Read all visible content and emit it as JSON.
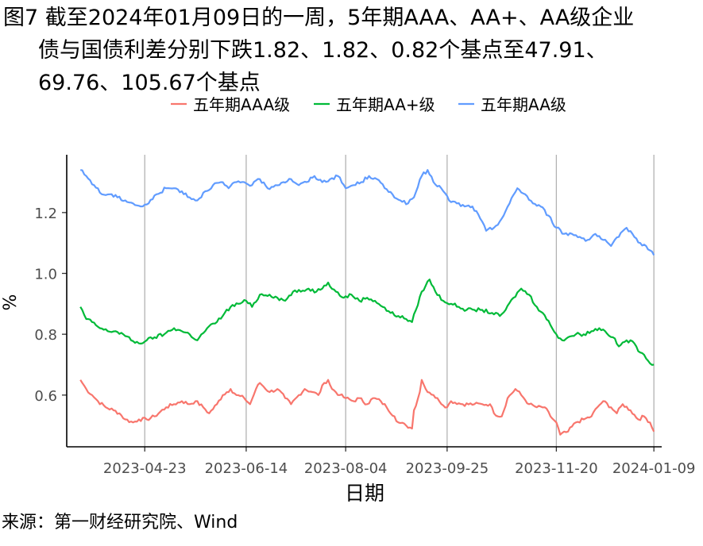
{
  "title_lines": [
    "图7  截至2024年01月09日的一周，5年期AAA、AA+、AA级企业",
    "债与国债利差分别下跌1.82、1.82、0.82个基点至47.91、",
    "69.76、105.67个基点"
  ],
  "source": "来源：第一财经研究院、Wind",
  "chart_data": {
    "type": "line",
    "xlabel": "日期",
    "ylabel": "%",
    "x_start": "2023-03-21",
    "x_end": "2024-01-09",
    "xlim": [
      "2023-03-14",
      "2024-01-13"
    ],
    "ylim": [
      0.43,
      1.39
    ],
    "x_ticks": [
      "2023-04-23",
      "2023-06-14",
      "2023-08-04",
      "2023-09-25",
      "2023-11-20",
      "2024-01-09"
    ],
    "y_ticks": [
      0.6,
      0.8,
      1.0,
      1.2
    ],
    "grid": "vertical",
    "legend_position": "top",
    "series": [
      {
        "name": "五年期AAA级",
        "color": "#F8766D",
        "points": [
          [
            "2023-03-21",
            0.65
          ],
          [
            "2023-03-24",
            0.62
          ],
          [
            "2023-03-27",
            0.6
          ],
          [
            "2023-03-30",
            0.58
          ],
          [
            "2023-04-03",
            0.56
          ],
          [
            "2023-04-07",
            0.55
          ],
          [
            "2023-04-10",
            0.54
          ],
          [
            "2023-04-13",
            0.52
          ],
          [
            "2023-04-17",
            0.51
          ],
          [
            "2023-04-20",
            0.52
          ],
          [
            "2023-04-24",
            0.52
          ],
          [
            "2023-04-28",
            0.53
          ],
          [
            "2023-05-04",
            0.56
          ],
          [
            "2023-05-08",
            0.57
          ],
          [
            "2023-05-12",
            0.58
          ],
          [
            "2023-05-16",
            0.57
          ],
          [
            "2023-05-19",
            0.58
          ],
          [
            "2023-05-23",
            0.56
          ],
          [
            "2023-05-26",
            0.54
          ],
          [
            "2023-05-30",
            0.57
          ],
          [
            "2023-06-02",
            0.6
          ],
          [
            "2023-06-06",
            0.62
          ],
          [
            "2023-06-09",
            0.6
          ],
          [
            "2023-06-13",
            0.59
          ],
          [
            "2023-06-16",
            0.57
          ],
          [
            "2023-06-19",
            0.62
          ],
          [
            "2023-06-21",
            0.64
          ],
          [
            "2023-06-26",
            0.61
          ],
          [
            "2023-06-30",
            0.62
          ],
          [
            "2023-07-04",
            0.59
          ],
          [
            "2023-07-07",
            0.57
          ],
          [
            "2023-07-11",
            0.6
          ],
          [
            "2023-07-14",
            0.62
          ],
          [
            "2023-07-18",
            0.61
          ],
          [
            "2023-07-21",
            0.6
          ],
          [
            "2023-07-24",
            0.64
          ],
          [
            "2023-07-26",
            0.65
          ],
          [
            "2023-07-28",
            0.62
          ],
          [
            "2023-08-01",
            0.6
          ],
          [
            "2023-08-04",
            0.59
          ],
          [
            "2023-08-08",
            0.58
          ],
          [
            "2023-08-11",
            0.59
          ],
          [
            "2023-08-15",
            0.57
          ],
          [
            "2023-08-18",
            0.59
          ],
          [
            "2023-08-22",
            0.58
          ],
          [
            "2023-08-25",
            0.56
          ],
          [
            "2023-08-29",
            0.53
          ],
          [
            "2023-08-31",
            0.51
          ],
          [
            "2023-09-04",
            0.5
          ],
          [
            "2023-09-07",
            0.49
          ],
          [
            "2023-09-08",
            0.55
          ],
          [
            "2023-09-11",
            0.61
          ],
          [
            "2023-09-12",
            0.65
          ],
          [
            "2023-09-14",
            0.62
          ],
          [
            "2023-09-18",
            0.6
          ],
          [
            "2023-09-21",
            0.58
          ],
          [
            "2023-09-25",
            0.56
          ],
          [
            "2023-09-27",
            0.58
          ],
          [
            "2023-10-03",
            0.57
          ],
          [
            "2023-10-09",
            0.57
          ],
          [
            "2023-10-13",
            0.57
          ],
          [
            "2023-10-17",
            0.57
          ],
          [
            "2023-10-19",
            0.54
          ],
          [
            "2023-10-23",
            0.53
          ],
          [
            "2023-10-26",
            0.59
          ],
          [
            "2023-10-30",
            0.62
          ],
          [
            "2023-11-02",
            0.6
          ],
          [
            "2023-11-06",
            0.57
          ],
          [
            "2023-11-10",
            0.56
          ],
          [
            "2023-11-14",
            0.56
          ],
          [
            "2023-11-17",
            0.53
          ],
          [
            "2023-11-20",
            0.51
          ],
          [
            "2023-11-22",
            0.47
          ],
          [
            "2023-11-26",
            0.48
          ],
          [
            "2023-11-30",
            0.51
          ],
          [
            "2023-12-04",
            0.52
          ],
          [
            "2023-12-08",
            0.53
          ],
          [
            "2023-12-11",
            0.56
          ],
          [
            "2023-12-14",
            0.58
          ],
          [
            "2023-12-18",
            0.56
          ],
          [
            "2023-12-21",
            0.54
          ],
          [
            "2023-12-24",
            0.57
          ],
          [
            "2023-12-28",
            0.55
          ],
          [
            "2024-01-01",
            0.52
          ],
          [
            "2024-01-04",
            0.53
          ],
          [
            "2024-01-07",
            0.51
          ],
          [
            "2024-01-09",
            0.48
          ]
        ]
      },
      {
        "name": "五年期AA+级",
        "color": "#00BA38",
        "points": [
          [
            "2023-03-21",
            0.89
          ],
          [
            "2023-03-24",
            0.85
          ],
          [
            "2023-03-27",
            0.84
          ],
          [
            "2023-03-31",
            0.82
          ],
          [
            "2023-04-04",
            0.81
          ],
          [
            "2023-04-08",
            0.81
          ],
          [
            "2023-04-12",
            0.8
          ],
          [
            "2023-04-16",
            0.78
          ],
          [
            "2023-04-20",
            0.77
          ],
          [
            "2023-04-24",
            0.78
          ],
          [
            "2023-04-28",
            0.79
          ],
          [
            "2023-05-03",
            0.8
          ],
          [
            "2023-05-08",
            0.82
          ],
          [
            "2023-05-12",
            0.81
          ],
          [
            "2023-05-16",
            0.8
          ],
          [
            "2023-05-20",
            0.78
          ],
          [
            "2023-05-25",
            0.82
          ],
          [
            "2023-05-30",
            0.84
          ],
          [
            "2023-06-03",
            0.87
          ],
          [
            "2023-06-06",
            0.89
          ],
          [
            "2023-06-10",
            0.9
          ],
          [
            "2023-06-14",
            0.91
          ],
          [
            "2023-06-17",
            0.89
          ],
          [
            "2023-06-21",
            0.93
          ],
          [
            "2023-06-26",
            0.93
          ],
          [
            "2023-06-30",
            0.92
          ],
          [
            "2023-07-04",
            0.91
          ],
          [
            "2023-07-08",
            0.94
          ],
          [
            "2023-07-12",
            0.94
          ],
          [
            "2023-07-16",
            0.95
          ],
          [
            "2023-07-20",
            0.94
          ],
          [
            "2023-07-24",
            0.96
          ],
          [
            "2023-07-26",
            0.97
          ],
          [
            "2023-07-30",
            0.94
          ],
          [
            "2023-08-03",
            0.92
          ],
          [
            "2023-08-07",
            0.93
          ],
          [
            "2023-08-11",
            0.91
          ],
          [
            "2023-08-15",
            0.92
          ],
          [
            "2023-08-19",
            0.91
          ],
          [
            "2023-08-23",
            0.89
          ],
          [
            "2023-08-27",
            0.87
          ],
          [
            "2023-08-31",
            0.86
          ],
          [
            "2023-09-04",
            0.85
          ],
          [
            "2023-09-07",
            0.84
          ],
          [
            "2023-09-09",
            0.88
          ],
          [
            "2023-09-12",
            0.94
          ],
          [
            "2023-09-16",
            0.98
          ],
          [
            "2023-09-19",
            0.94
          ],
          [
            "2023-09-23",
            0.91
          ],
          [
            "2023-09-27",
            0.9
          ],
          [
            "2023-10-01",
            0.89
          ],
          [
            "2023-10-05",
            0.88
          ],
          [
            "2023-10-09",
            0.88
          ],
          [
            "2023-10-13",
            0.88
          ],
          [
            "2023-10-18",
            0.87
          ],
          [
            "2023-10-22",
            0.86
          ],
          [
            "2023-10-25",
            0.88
          ],
          [
            "2023-10-29",
            0.92
          ],
          [
            "2023-11-02",
            0.95
          ],
          [
            "2023-11-06",
            0.93
          ],
          [
            "2023-11-10",
            0.89
          ],
          [
            "2023-11-13",
            0.87
          ],
          [
            "2023-11-17",
            0.83
          ],
          [
            "2023-11-20",
            0.8
          ],
          [
            "2023-11-23",
            0.78
          ],
          [
            "2023-11-26",
            0.79
          ],
          [
            "2023-11-30",
            0.8
          ],
          [
            "2023-12-04",
            0.8
          ],
          [
            "2023-12-08",
            0.81
          ],
          [
            "2023-12-12",
            0.82
          ],
          [
            "2023-12-15",
            0.81
          ],
          [
            "2023-12-19",
            0.79
          ],
          [
            "2023-12-22",
            0.76
          ],
          [
            "2023-12-26",
            0.78
          ],
          [
            "2023-12-30",
            0.77
          ],
          [
            "2024-01-02",
            0.74
          ],
          [
            "2024-01-05",
            0.72
          ],
          [
            "2024-01-09",
            0.7
          ]
        ]
      },
      {
        "name": "五年期AA级",
        "color": "#619CFF",
        "points": [
          [
            "2023-03-21",
            1.34
          ],
          [
            "2023-03-24",
            1.32
          ],
          [
            "2023-03-28",
            1.29
          ],
          [
            "2023-04-01",
            1.26
          ],
          [
            "2023-04-05",
            1.26
          ],
          [
            "2023-04-09",
            1.25
          ],
          [
            "2023-04-13",
            1.24
          ],
          [
            "2023-04-17",
            1.23
          ],
          [
            "2023-04-21",
            1.22
          ],
          [
            "2023-04-25",
            1.23
          ],
          [
            "2023-04-29",
            1.26
          ],
          [
            "2023-05-04",
            1.28
          ],
          [
            "2023-05-08",
            1.28
          ],
          [
            "2023-05-12",
            1.27
          ],
          [
            "2023-05-16",
            1.25
          ],
          [
            "2023-05-20",
            1.24
          ],
          [
            "2023-05-24",
            1.27
          ],
          [
            "2023-05-28",
            1.29
          ],
          [
            "2023-06-01",
            1.3
          ],
          [
            "2023-06-05",
            1.28
          ],
          [
            "2023-06-09",
            1.3
          ],
          [
            "2023-06-13",
            1.3
          ],
          [
            "2023-06-17",
            1.29
          ],
          [
            "2023-06-21",
            1.31
          ],
          [
            "2023-06-25",
            1.28
          ],
          [
            "2023-06-29",
            1.29
          ],
          [
            "2023-07-03",
            1.3
          ],
          [
            "2023-07-07",
            1.31
          ],
          [
            "2023-07-11",
            1.29
          ],
          [
            "2023-07-15",
            1.3
          ],
          [
            "2023-07-19",
            1.32
          ],
          [
            "2023-07-23",
            1.3
          ],
          [
            "2023-07-27",
            1.31
          ],
          [
            "2023-07-31",
            1.32
          ],
          [
            "2023-08-04",
            1.28
          ],
          [
            "2023-08-08",
            1.29
          ],
          [
            "2023-08-12",
            1.3
          ],
          [
            "2023-08-16",
            1.32
          ],
          [
            "2023-08-20",
            1.31
          ],
          [
            "2023-08-24",
            1.28
          ],
          [
            "2023-08-28",
            1.26
          ],
          [
            "2023-09-01",
            1.24
          ],
          [
            "2023-09-05",
            1.23
          ],
          [
            "2023-09-08",
            1.25
          ],
          [
            "2023-09-12",
            1.32
          ],
          [
            "2023-09-15",
            1.34
          ],
          [
            "2023-09-18",
            1.3
          ],
          [
            "2023-09-22",
            1.28
          ],
          [
            "2023-09-26",
            1.24
          ],
          [
            "2023-09-30",
            1.23
          ],
          [
            "2023-10-04",
            1.22
          ],
          [
            "2023-10-08",
            1.22
          ],
          [
            "2023-10-12",
            1.18
          ],
          [
            "2023-10-15",
            1.14
          ],
          [
            "2023-10-19",
            1.15
          ],
          [
            "2023-10-23",
            1.18
          ],
          [
            "2023-10-27",
            1.23
          ],
          [
            "2023-10-31",
            1.28
          ],
          [
            "2023-11-04",
            1.26
          ],
          [
            "2023-11-08",
            1.23
          ],
          [
            "2023-11-12",
            1.22
          ],
          [
            "2023-11-16",
            1.19
          ],
          [
            "2023-11-20",
            1.15
          ],
          [
            "2023-11-24",
            1.13
          ],
          [
            "2023-11-28",
            1.13
          ],
          [
            "2023-12-02",
            1.12
          ],
          [
            "2023-12-06",
            1.11
          ],
          [
            "2023-12-10",
            1.13
          ],
          [
            "2023-12-14",
            1.11
          ],
          [
            "2023-12-18",
            1.09
          ],
          [
            "2023-12-22",
            1.12
          ],
          [
            "2023-12-26",
            1.15
          ],
          [
            "2023-12-29",
            1.13
          ],
          [
            "2024-01-02",
            1.1
          ],
          [
            "2024-01-05",
            1.09
          ],
          [
            "2024-01-09",
            1.06
          ]
        ]
      }
    ]
  }
}
